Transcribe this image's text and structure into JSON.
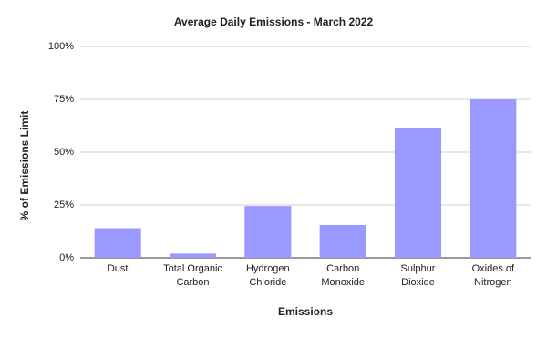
{
  "chart_data": {
    "type": "bar",
    "title": "Average Daily Emissions - March 2022",
    "x_label": "Emissions",
    "y_label": "% of Emissions Limit",
    "categories": [
      "Dust",
      "Total Organic Carbon",
      "Hydrogen Chloride",
      "Carbon Monoxide",
      "Sulphur Dioxide",
      "Oxides of Nitrogen"
    ],
    "values": [
      14,
      2,
      24.5,
      15.5,
      61.5,
      75
    ],
    "color": "#9999ff",
    "ylim": [
      0,
      100
    ],
    "yticks": [
      {
        "value": 0,
        "label": "0%"
      },
      {
        "value": 25,
        "label": "25%"
      },
      {
        "value": 50,
        "label": "50%"
      },
      {
        "value": 75,
        "label": "75%"
      },
      {
        "value": 100,
        "label": "100%"
      }
    ],
    "grid": true
  }
}
